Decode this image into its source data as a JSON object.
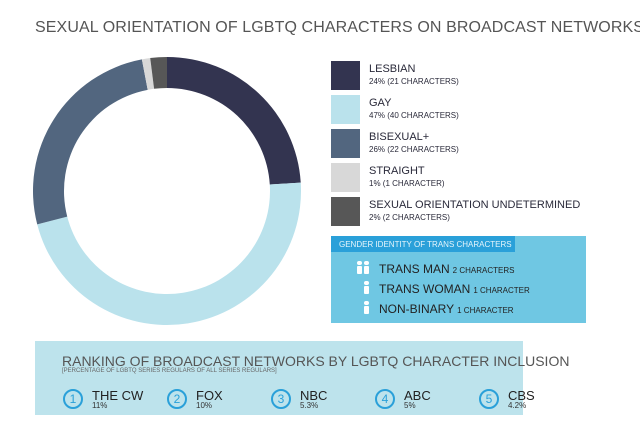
{
  "chart_data": {
    "type": "pie",
    "variant": "donut",
    "title": "SEXUAL ORIENTATION OF LGBTQ CHARACTERS ON BROADCAST NETWORKS",
    "slices": [
      {
        "label": "LESBIAN",
        "value": 24,
        "detail": "24% (21 CHARACTERS)",
        "color": "#333450"
      },
      {
        "label": "GAY",
        "value": 47,
        "detail": "47% (40 CHARACTERS)",
        "color": "#bae2ec"
      },
      {
        "label": "BISEXUAL+",
        "value": 26,
        "detail": "26% (22 CHARACTERS)",
        "color": "#52667f"
      },
      {
        "label": "STRAIGHT",
        "value": 1,
        "detail": "1% (1 CHARACTER)",
        "color": "#d8d8d8"
      },
      {
        "label": "SEXUAL ORIENTATION UNDETERMINED",
        "value": 2,
        "detail": "2% (2 CHARACTERS)",
        "color": "#575757"
      }
    ],
    "legend_position": "right"
  },
  "trans": {
    "header": "GENDER IDENTITY OF TRANS CHARACTERS",
    "items": [
      {
        "label": "TRANS MAN",
        "count": "2 CHARACTERS",
        "icons": 2
      },
      {
        "label": "TRANS WOMAN",
        "count": "1 CHARACTER",
        "icons": 1
      },
      {
        "label": "NON-BINARY",
        "count": "1 CHARACTER",
        "icons": 1
      }
    ]
  },
  "ranking": {
    "title": "RANKING OF BROADCAST NETWORKS BY LGBTQ CHARACTER INCLUSION",
    "subtitle": "[PERCENTAGE OF LGBTQ SERIES REGULARS OF ALL SERIES REGULARS]",
    "networks": [
      {
        "rank": "1",
        "name": "THE CW",
        "pct": "11%"
      },
      {
        "rank": "2",
        "name": "FOX",
        "pct": "10%"
      },
      {
        "rank": "3",
        "name": "NBC",
        "pct": "5.3%"
      },
      {
        "rank": "4",
        "name": "ABC",
        "pct": "5%"
      },
      {
        "rank": "5",
        "name": "CBS",
        "pct": "4.2%"
      }
    ]
  }
}
